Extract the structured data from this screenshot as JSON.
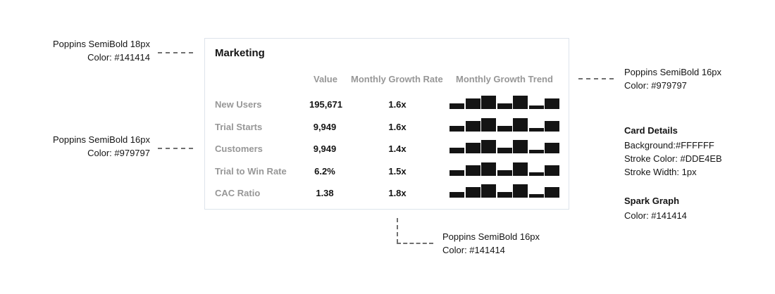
{
  "card": {
    "title": "Marketing",
    "columns": [
      "Value",
      "Monthly Growth Rate",
      "Monthly Growth Trend"
    ],
    "rows": [
      {
        "label": "New Users",
        "value": "195,671",
        "rate": "1.6x",
        "trend": [
          0.4,
          0.75,
          0.95,
          0.4,
          0.95,
          0.25,
          0.75
        ]
      },
      {
        "label": "Trial Starts",
        "value": "9,949",
        "rate": "1.6x",
        "trend": [
          0.4,
          0.75,
          0.95,
          0.4,
          0.95,
          0.25,
          0.75
        ]
      },
      {
        "label": "Customers",
        "value": "9,949",
        "rate": "1.4x",
        "trend": [
          0.4,
          0.75,
          0.95,
          0.4,
          0.95,
          0.25,
          0.75
        ]
      },
      {
        "label": "Trial to Win Rate",
        "value": "6.2%",
        "rate": "1.5x",
        "trend": [
          0.4,
          0.75,
          0.95,
          0.4,
          0.95,
          0.25,
          0.75
        ]
      },
      {
        "label": "CAC Ratio",
        "value": "1.38",
        "rate": "1.8x",
        "trend": [
          0.4,
          0.75,
          0.95,
          0.4,
          0.95,
          0.25,
          0.75
        ]
      }
    ],
    "colors": {
      "background": "#FFFFFF",
      "stroke": "#DDE4EB",
      "spark": "#141414",
      "muted": "#979797",
      "text": "#141414"
    }
  },
  "annotations": {
    "title_font": {
      "line1": "Poppins SemiBold 18px",
      "line2": "Color: #141414"
    },
    "label_font": {
      "line1": "Poppins SemiBold 16px",
      "line2": "Color: #979797"
    },
    "header_font": {
      "line1": "Poppins SemiBold 16px",
      "line2": "Color: #979797"
    },
    "value_font": {
      "line1": "Poppins SemiBold 16px",
      "line2": "Color: #141414"
    },
    "card_details": {
      "heading": "Card Details",
      "background": "Background:#FFFFFF",
      "stroke_color": "Stroke Color: #DDE4EB",
      "stroke_width": "Stroke Width: 1px"
    },
    "spark_graph": {
      "heading": "Spark Graph",
      "color": "Color: #141414"
    }
  }
}
